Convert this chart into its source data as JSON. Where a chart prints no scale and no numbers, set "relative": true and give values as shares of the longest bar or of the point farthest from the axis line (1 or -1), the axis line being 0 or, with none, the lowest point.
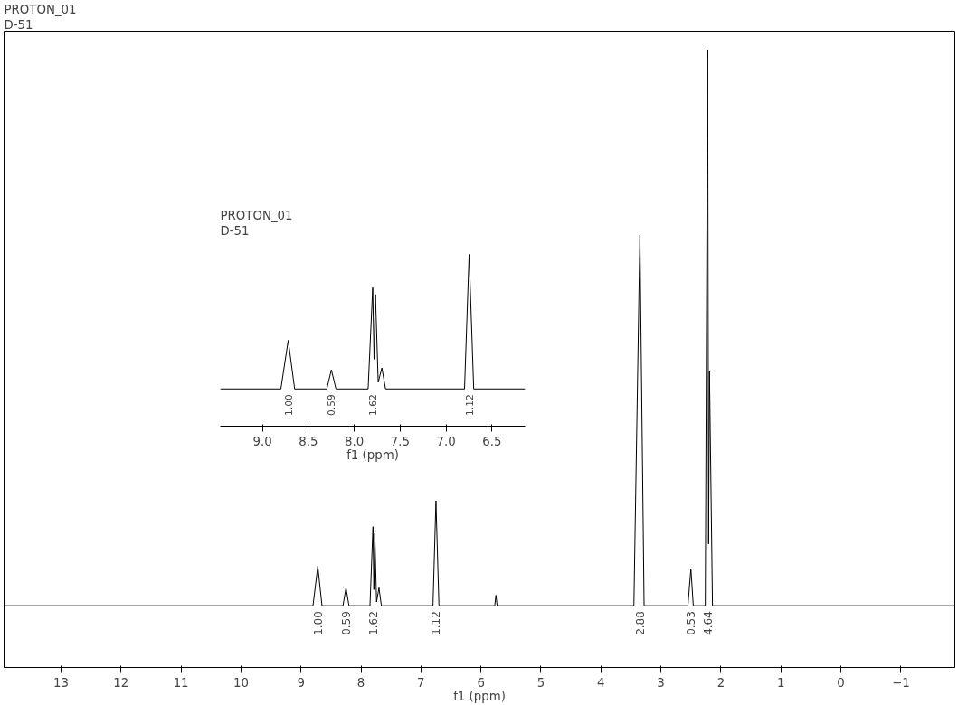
{
  "chart_data": [
    {
      "type": "line",
      "title": "PROTON_01",
      "subtitle": "D-51",
      "xlabel": "f1 (ppm)",
      "relative": true,
      "xlim": [
        13.95,
        -1.9
      ],
      "xticks": [
        13,
        12,
        11,
        10,
        9,
        8,
        7,
        6,
        5,
        4,
        3,
        2,
        1,
        0,
        -1
      ],
      "series": [
        {
          "color": "#000000",
          "x": [
            13.95,
            8.8,
            8.72,
            8.65,
            8.3,
            8.25,
            8.2,
            7.85,
            7.8,
            7.785,
            7.77,
            7.74,
            7.7,
            7.66,
            6.8,
            6.75,
            6.7,
            5.77,
            5.75,
            5.73,
            3.45,
            3.35,
            3.28,
            2.55,
            2.5,
            2.46,
            2.26,
            2.22,
            2.205,
            2.19,
            2.14,
            -1.9
          ],
          "values": [
            0.1,
            0.1,
            0.164,
            0.1,
            0.1,
            0.129,
            0.1,
            0.1,
            0.228,
            0.126,
            0.217,
            0.106,
            0.129,
            0.1,
            0.1,
            0.27,
            0.1,
            0.1,
            0.117,
            0.1,
            0.1,
            0.7,
            0.1,
            0.1,
            0.16,
            0.1,
            0.1,
            1,
            0.2,
            0.479,
            0.1,
            0.1
          ]
        }
      ],
      "annotations": [
        "1.00",
        "0.59",
        "1.62",
        "1.12",
        "2.88",
        "0.53",
        "4.64"
      ]
    },
    {
      "type": "line",
      "title": "PROTON_01",
      "subtitle": "D-51",
      "xlabel": "f1 (ppm)",
      "relative": true,
      "xlim": [
        9.46,
        6.14
      ],
      "xticks": [
        {
          "value": 9,
          "label": "9.0"
        },
        {
          "value": 8.5,
          "label": "8.5"
        },
        {
          "value": 8,
          "label": "8.0"
        },
        {
          "value": 7.5,
          "label": "7.5"
        },
        {
          "value": 7,
          "label": "7.0"
        },
        {
          "value": 6.5,
          "label": "6.5"
        }
      ],
      "series": [
        {
          "color": "#000000",
          "x": [
            9.46,
            8.8,
            8.72,
            8.65,
            8.3,
            8.25,
            8.2,
            7.85,
            7.8,
            7.785,
            7.77,
            7.74,
            7.7,
            7.66,
            6.8,
            6.75,
            6.7,
            6.14
          ],
          "values": [
            0.217,
            0.217,
            0.5,
            0.217,
            0.217,
            0.328,
            0.217,
            0.217,
            0.806,
            0.39,
            0.767,
            0.256,
            0.339,
            0.217,
            0.217,
            1,
            0.217,
            0.217
          ]
        }
      ],
      "annotations": [
        "1.00",
        "0.59",
        "1.62",
        "1.12"
      ]
    }
  ]
}
